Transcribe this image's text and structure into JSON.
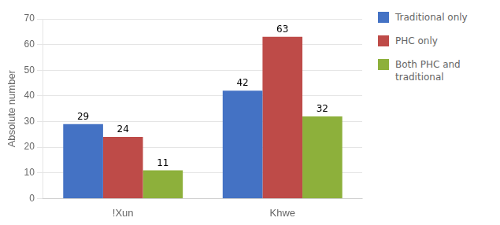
{
  "chart_data": {
    "type": "bar",
    "categories": [
      "!Xun",
      "Khwe"
    ],
    "series": [
      {
        "name": "Traditional only",
        "color": "#4472C4",
        "values": [
          29,
          42
        ]
      },
      {
        "name": "PHC only",
        "color": "#BE4B48",
        "values": [
          24,
          63
        ]
      },
      {
        "name": "Both PHC and\ntraditional",
        "color": "#8DB03B",
        "values": [
          11,
          32
        ]
      }
    ],
    "ylabel": "Absolute number",
    "ylim": [
      0,
      70
    ],
    "yticks": [
      0,
      10,
      20,
      30,
      40,
      50,
      60,
      70
    ],
    "grid": true,
    "legend": "right",
    "data_labels": true
  }
}
